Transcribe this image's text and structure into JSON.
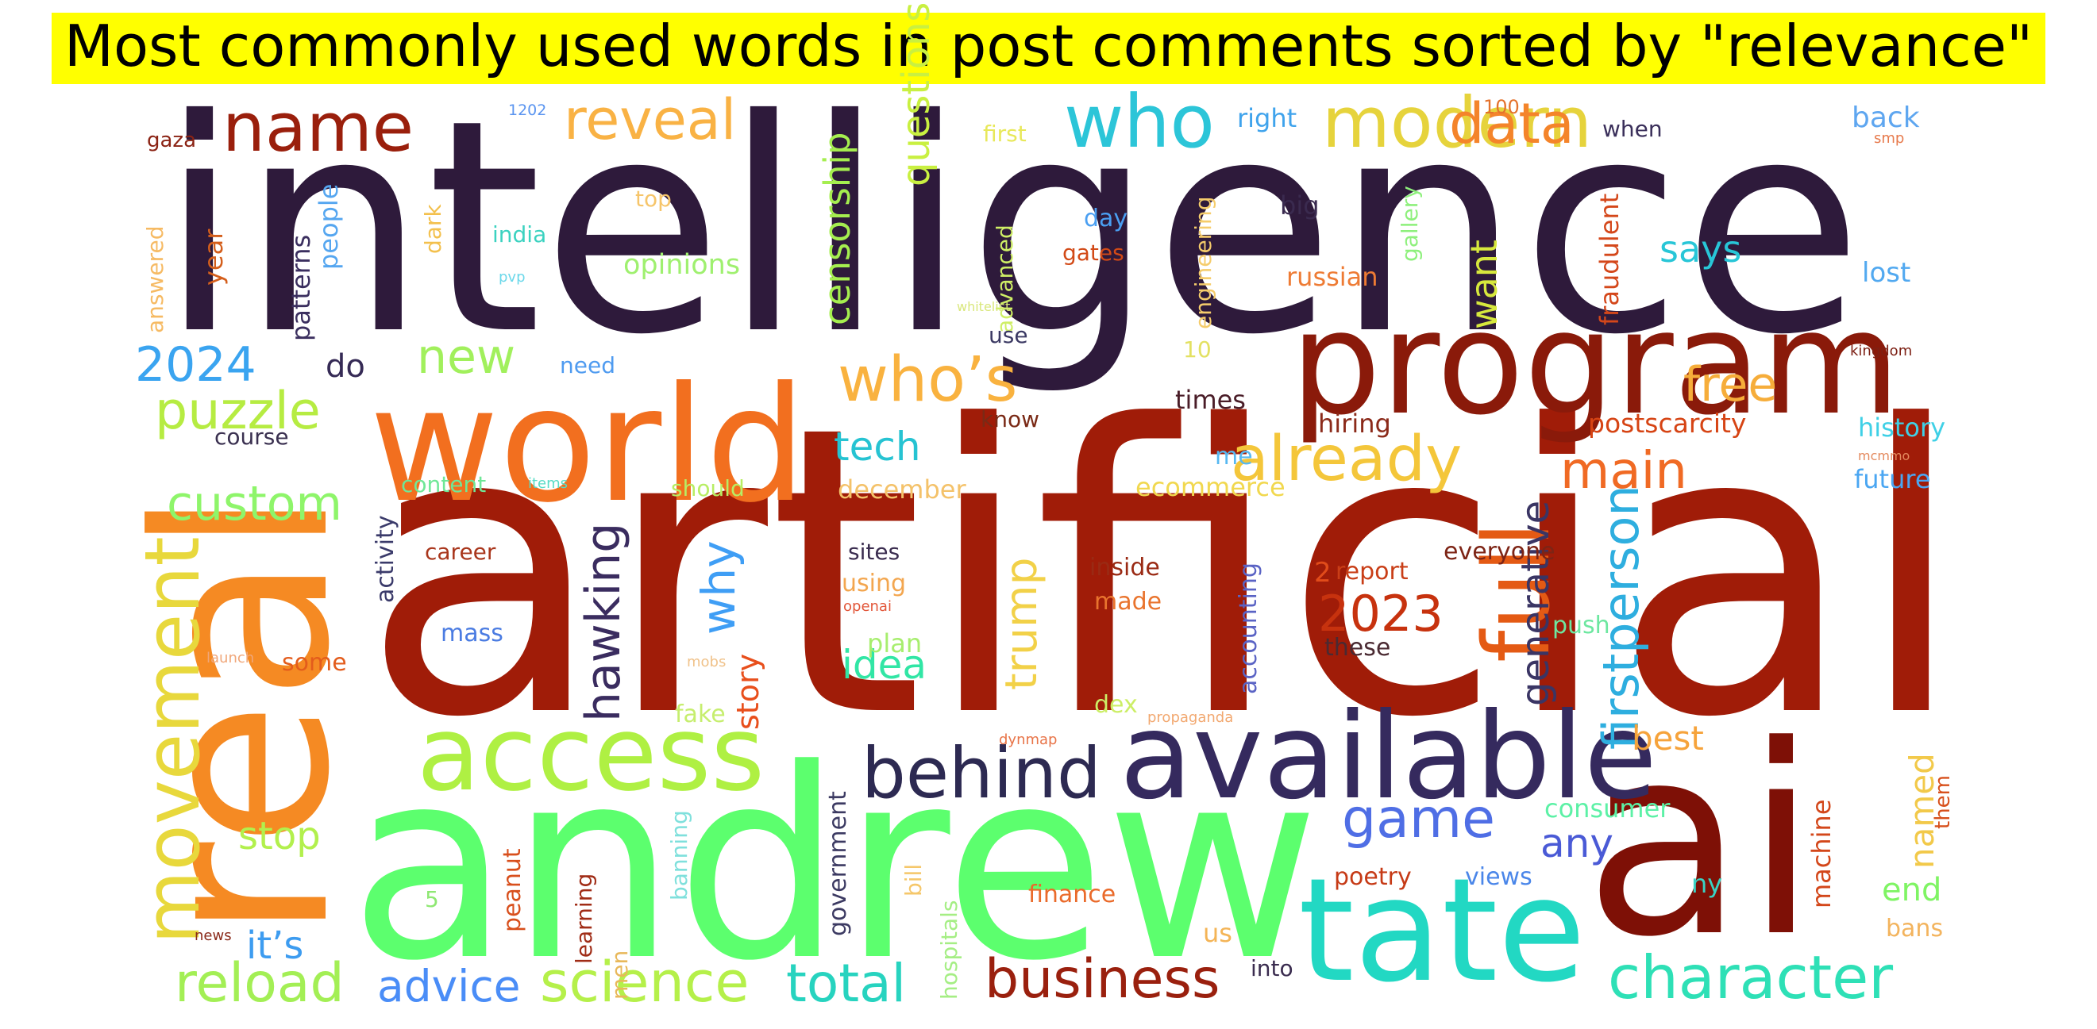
{
  "title": "Most commonly used words in post comments sorted by \"relevance\"",
  "palette": {
    "title_background": "#ffff00",
    "dark_purple": "#2e1a3b",
    "dark_red": "#8b1a08",
    "orange": "#f47c20",
    "green": "#5cff6e",
    "lime": "#aff043",
    "teal": "#22d7c1",
    "yellow": "#e8d23b",
    "blue": "#4a8ff0"
  },
  "words": [
    {
      "text": "intelligence",
      "color": "#2e1a3b"
    },
    {
      "text": "artificial",
      "color": "#a01c08"
    },
    {
      "text": "andrew",
      "color": "#5cff6e"
    },
    {
      "text": "ai",
      "color": "#7e1006"
    },
    {
      "text": "real",
      "color": "#f58a23"
    },
    {
      "text": "world",
      "color": "#f26f1f"
    },
    {
      "text": "program",
      "color": "#8a1a0a"
    },
    {
      "text": "available",
      "color": "#352a5e"
    },
    {
      "text": "tate",
      "color": "#22d8c3"
    },
    {
      "text": "access",
      "color": "#aff043"
    },
    {
      "text": "full",
      "color": "#e45a14"
    },
    {
      "text": "behind",
      "color": "#2d2a52"
    },
    {
      "text": "modern",
      "color": "#e6d33c"
    },
    {
      "text": "name",
      "color": "#9a1f0c"
    },
    {
      "text": "movement",
      "color": "#e8d83c"
    },
    {
      "text": "who",
      "color": "#2cc5d8"
    },
    {
      "text": "reveal",
      "color": "#f9b244"
    },
    {
      "text": "data",
      "color": "#f4842a"
    },
    {
      "text": "who’s",
      "color": "#f9b23f"
    },
    {
      "text": "already",
      "color": "#f4c63a"
    },
    {
      "text": "business",
      "color": "#9a200e"
    },
    {
      "text": "character",
      "color": "#2ee0b6"
    },
    {
      "text": "science",
      "color": "#b5f04a"
    },
    {
      "text": "reload",
      "color": "#a3ef55"
    },
    {
      "text": "game",
      "color": "#4f6ee5"
    },
    {
      "text": "main",
      "color": "#f06a24"
    },
    {
      "text": "custom",
      "color": "#8ef56a"
    },
    {
      "text": "puzzle",
      "color": "#b6ec42"
    },
    {
      "text": "2024",
      "color": "#3aa4f0"
    },
    {
      "text": "new",
      "color": "#a1f05c"
    },
    {
      "text": "firstperson",
      "color": "#2eaedf"
    },
    {
      "text": "total",
      "color": "#27d3bf"
    },
    {
      "text": "hawking",
      "color": "#3a2c5f"
    },
    {
      "text": "2023",
      "color": "#c7320e"
    },
    {
      "text": "free",
      "color": "#f6ad3a"
    },
    {
      "text": "why",
      "color": "#3f9ef5"
    },
    {
      "text": "trump",
      "color": "#f2d148"
    },
    {
      "text": "tech",
      "color": "#26c3d2"
    },
    {
      "text": "advice",
      "color": "#4a8df7"
    },
    {
      "text": "censorship",
      "color": "#a5ee4f"
    },
    {
      "text": "questions",
      "color": "#c9f041"
    },
    {
      "text": "generative",
      "color": "#3a3564"
    },
    {
      "text": "idea",
      "color": "#31e6a5"
    },
    {
      "text": "any",
      "color": "#4a5ad6"
    },
    {
      "text": "stop",
      "color": "#b2f04d"
    },
    {
      "text": "it’s",
      "color": "#3d9cf0"
    },
    {
      "text": "says",
      "color": "#28c6d7"
    },
    {
      "text": "want",
      "color": "#d7e83d"
    },
    {
      "text": "best",
      "color": "#f6a33b"
    },
    {
      "text": "named",
      "color": "#f2c94a"
    },
    {
      "text": "story",
      "color": "#e84f1c"
    },
    {
      "text": "end",
      "color": "#7ff464"
    },
    {
      "text": "consumer",
      "color": "#5cf1a6"
    },
    {
      "text": "do",
      "color": "#352a55"
    },
    {
      "text": "postscarcity",
      "color": "#d64414"
    },
    {
      "text": "times",
      "color": "#4a1d28"
    },
    {
      "text": "december",
      "color": "#f4c26a"
    },
    {
      "text": "ecommerce",
      "color": "#f1d84f"
    },
    {
      "text": "history",
      "color": "#3fd0e6"
    },
    {
      "text": "future",
      "color": "#4aa6f2"
    },
    {
      "text": "russian",
      "color": "#ee7b34"
    },
    {
      "text": "fraudulent",
      "color": "#d4471a"
    },
    {
      "text": "opinions",
      "color": "#9ff06f"
    },
    {
      "text": "patterns",
      "color": "#3b2f5f"
    },
    {
      "text": "people",
      "color": "#55a6f0"
    },
    {
      "text": "year",
      "color": "#d45f1c"
    },
    {
      "text": "answered",
      "color": "#f6ba63"
    },
    {
      "text": "gaza",
      "color": "#8b2314"
    },
    {
      "text": "dark",
      "color": "#f3c04d"
    },
    {
      "text": "top",
      "color": "#f6c56a"
    },
    {
      "text": "india",
      "color": "#3bd2c0"
    },
    {
      "text": "pvp",
      "color": "#6bd8ea"
    },
    {
      "text": "1202",
      "color": "#5b95f0"
    },
    {
      "text": "first",
      "color": "#e8e85a"
    },
    {
      "text": "right",
      "color": "#3fa3ec"
    },
    {
      "text": "100",
      "color": "#e4722c"
    },
    {
      "text": "when",
      "color": "#3a2f5a"
    },
    {
      "text": "back",
      "color": "#5ea6f0"
    },
    {
      "text": "smp",
      "color": "#e77a4c"
    },
    {
      "text": "day",
      "color": "#4a9ff2"
    },
    {
      "text": "big",
      "color": "#3a2a4f"
    },
    {
      "text": "gates",
      "color": "#d24a17"
    },
    {
      "text": "lost",
      "color": "#52a9f0"
    },
    {
      "text": "advanced",
      "color": "#cfef66"
    },
    {
      "text": "engineering",
      "color": "#f5cc6b"
    },
    {
      "text": "gallery",
      "color": "#8ef07c"
    },
    {
      "text": "whitelist",
      "color": "#d9e77b"
    },
    {
      "text": "use",
      "color": "#3b3963"
    },
    {
      "text": "10",
      "color": "#e3e162"
    },
    {
      "text": "kingdom",
      "color": "#7d2115"
    },
    {
      "text": "need",
      "color": "#4f9bf0"
    },
    {
      "text": "know",
      "color": "#7a2a16"
    },
    {
      "text": "hiring",
      "color": "#8b2a1a"
    },
    {
      "text": "me",
      "color": "#57b8f1"
    },
    {
      "text": "course",
      "color": "#3a3050"
    },
    {
      "text": "content",
      "color": "#6fe797"
    },
    {
      "text": "items",
      "color": "#58dcc6"
    },
    {
      "text": "should",
      "color": "#b8ee64"
    },
    {
      "text": "mcmmo",
      "color": "#e48a5e"
    },
    {
      "text": "activity",
      "color": "#3a3a6a"
    },
    {
      "text": "career",
      "color": "#a9361c"
    },
    {
      "text": "sites",
      "color": "#3a2c4f"
    },
    {
      "text": "using",
      "color": "#f3a64f"
    },
    {
      "text": "inside",
      "color": "#9a2a14"
    },
    {
      "text": "made",
      "color": "#e9742e"
    },
    {
      "text": "accounting",
      "color": "#5a63c4"
    },
    {
      "text": "2",
      "color": "#e14c1a"
    },
    {
      "text": "report",
      "color": "#c93e17"
    },
    {
      "text": "everyone",
      "color": "#7d2415"
    },
    {
      "text": "mass",
      "color": "#4b7ce2"
    },
    {
      "text": "openai",
      "color": "#e2573a"
    },
    {
      "text": "push",
      "color": "#6de7a0"
    },
    {
      "text": "these",
      "color": "#4a2a32"
    },
    {
      "text": "some",
      "color": "#e35c1c"
    },
    {
      "text": "launch",
      "color": "#f0a77a"
    },
    {
      "text": "plan",
      "color": "#a7ee6e"
    },
    {
      "text": "mobs",
      "color": "#f0c28a"
    },
    {
      "text": "fake",
      "color": "#c6ee6e"
    },
    {
      "text": "dex",
      "color": "#ccee66"
    },
    {
      "text": "propaganda",
      "color": "#f2a870"
    },
    {
      "text": "dynmap",
      "color": "#e87448"
    },
    {
      "text": "government",
      "color": "#3c3a62"
    },
    {
      "text": "peanut",
      "color": "#d84f1c"
    },
    {
      "text": "banning",
      "color": "#7fe0dc"
    },
    {
      "text": "bill",
      "color": "#f5c76a"
    },
    {
      "text": "hospitals",
      "color": "#a5ee84"
    },
    {
      "text": "learning",
      "color": "#a02c16"
    },
    {
      "text": "men",
      "color": "#e8b85a"
    },
    {
      "text": "5",
      "color": "#8fe873"
    },
    {
      "text": "news",
      "color": "#8a2a1a"
    },
    {
      "text": "finance",
      "color": "#ea6a2a"
    },
    {
      "text": "poetry",
      "color": "#c63a16"
    },
    {
      "text": "views",
      "color": "#4a86e9"
    },
    {
      "text": "us",
      "color": "#f4b456"
    },
    {
      "text": "into",
      "color": "#3a2c4f"
    },
    {
      "text": "machine",
      "color": "#d3471a"
    },
    {
      "text": "them",
      "color": "#d7501c"
    },
    {
      "text": "ny",
      "color": "#39d3c4"
    },
    {
      "text": "bans",
      "color": "#f3b45e"
    }
  ]
}
